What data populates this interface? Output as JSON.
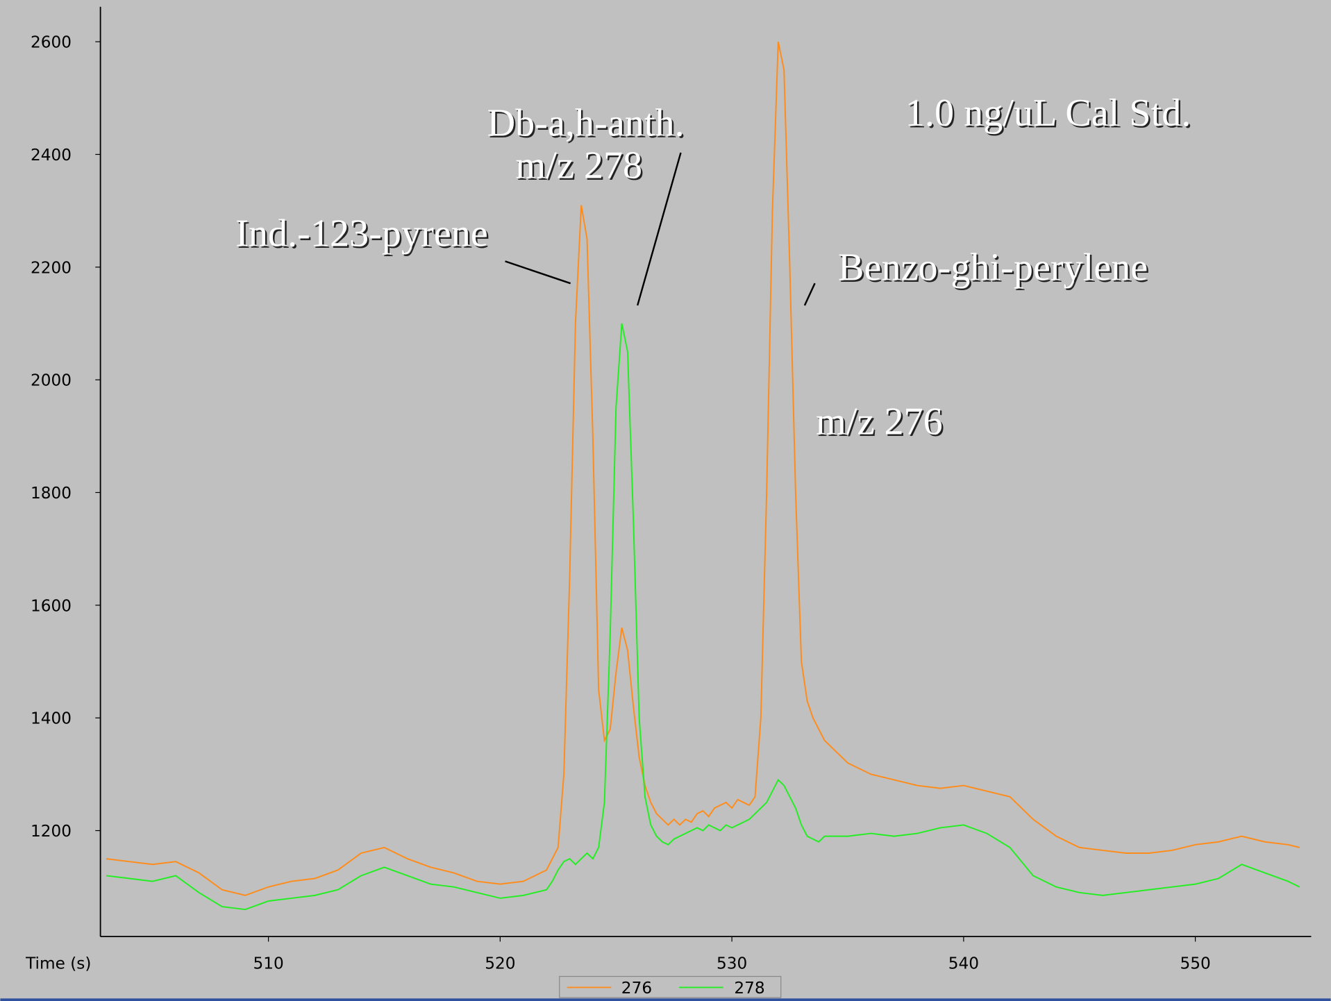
{
  "chart_data": {
    "type": "line",
    "title": "1.0 ng/uL Cal Std.",
    "x_label": "Time (s)",
    "annotations": [
      "Db-a,h-anth.",
      "m/z 278",
      "Ind.-123-pyrene",
      "Benzo-ghi-perylene",
      "m/z 276"
    ],
    "x": [
      503,
      504,
      505,
      506,
      507,
      508,
      509,
      510,
      511,
      512,
      513,
      514,
      515,
      516,
      517,
      518,
      519,
      520,
      521,
      522,
      522.25,
      522.5,
      522.75,
      523,
      523.25,
      523.5,
      523.75,
      524,
      524.25,
      524.5,
      524.75,
      525,
      525.25,
      525.5,
      525.75,
      526,
      526.25,
      526.5,
      526.75,
      527,
      527.25,
      527.5,
      527.75,
      528,
      528.25,
      528.5,
      528.75,
      529,
      529.25,
      529.5,
      529.75,
      530,
      530.25,
      530.5,
      530.75,
      531,
      531.25,
      531.5,
      531.75,
      532,
      532.25,
      532.5,
      532.75,
      533,
      533.25,
      533.5,
      533.75,
      534,
      535,
      536,
      537,
      538,
      539,
      540,
      541,
      542,
      543,
      544,
      545,
      546,
      547,
      548,
      549,
      550,
      551,
      552,
      553,
      554,
      554.5
    ],
    "series": [
      {
        "name": "276",
        "color": "#ff8c1a",
        "values": [
          1150,
          1145,
          1140,
          1145,
          1125,
          1095,
          1085,
          1100,
          1110,
          1115,
          1130,
          1160,
          1170,
          1150,
          1135,
          1125,
          1110,
          1105,
          1110,
          1130,
          1150,
          1170,
          1300,
          1650,
          2100,
          2310,
          2250,
          1900,
          1450,
          1360,
          1380,
          1480,
          1560,
          1520,
          1420,
          1330,
          1280,
          1250,
          1230,
          1220,
          1210,
          1220,
          1210,
          1220,
          1215,
          1230,
          1235,
          1225,
          1240,
          1245,
          1250,
          1240,
          1255,
          1250,
          1245,
          1260,
          1400,
          1800,
          2300,
          2600,
          2550,
          2200,
          1800,
          1500,
          1430,
          1400,
          1380,
          1360,
          1320,
          1300,
          1290,
          1280,
          1275,
          1280,
          1270,
          1260,
          1220,
          1190,
          1170,
          1165,
          1160,
          1160,
          1165,
          1175,
          1180,
          1190,
          1180,
          1175,
          1170
        ]
      },
      {
        "name": "278",
        "color": "#22ee22",
        "values": [
          1120,
          1115,
          1110,
          1120,
          1090,
          1065,
          1060,
          1075,
          1080,
          1085,
          1095,
          1120,
          1135,
          1120,
          1105,
          1100,
          1090,
          1080,
          1085,
          1095,
          1110,
          1130,
          1145,
          1150,
          1140,
          1150,
          1160,
          1150,
          1170,
          1250,
          1550,
          1950,
          2100,
          2050,
          1750,
          1400,
          1260,
          1210,
          1190,
          1180,
          1175,
          1185,
          1190,
          1195,
          1200,
          1205,
          1200,
          1210,
          1205,
          1200,
          1210,
          1205,
          1210,
          1215,
          1220,
          1230,
          1240,
          1250,
          1270,
          1290,
          1280,
          1260,
          1240,
          1210,
          1190,
          1185,
          1180,
          1190,
          1190,
          1195,
          1190,
          1195,
          1205,
          1210,
          1195,
          1170,
          1120,
          1100,
          1090,
          1085,
          1090,
          1095,
          1100,
          1105,
          1115,
          1140,
          1125,
          1110,
          1100
        ]
      }
    ],
    "xlim": [
      502.75,
      555
    ],
    "xticks": [
      510,
      520,
      530,
      540,
      550
    ],
    "ylim": [
      1012,
      2662
    ],
    "yticks": [
      1200,
      1400,
      1600,
      1800,
      2000,
      2200,
      2400,
      2600
    ],
    "grid": false,
    "legend": "bottom"
  }
}
